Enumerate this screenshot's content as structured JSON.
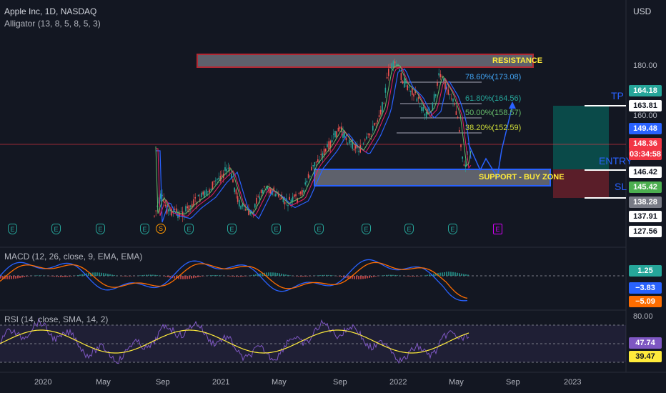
{
  "header": {
    "symbol_line": "Apple Inc, 1D, NASDAQ",
    "indicator": "Alligator (13, 8, 5, 8, 5, 3)",
    "currency": "USD"
  },
  "zones": {
    "resistance": "RESISTANCE",
    "support": "SUPPORT - BUY ZONE"
  },
  "fib": {
    "f786": "78.60%(173.08)",
    "f618": "61.80%(164.56)",
    "f500": "50.00%(158.57)",
    "f382": "38.20%(152.59)"
  },
  "position": {
    "tp": "TP",
    "entry": "ENTRY",
    "sl": "SL"
  },
  "price_axis": {
    "p180": "180.00",
    "p160": "160.00",
    "tags": [
      {
        "value": "164.18",
        "bg": "#26a69a",
        "fg": "#ffffff"
      },
      {
        "value": "163.81",
        "bg": "#ffffff",
        "fg": "#131722"
      },
      {
        "value": "149.48",
        "bg": "#2962ff",
        "fg": "#ffffff"
      },
      {
        "value": "148.36",
        "bg": "#f23645",
        "fg": "#ffffff"
      },
      {
        "value": "03:34:58",
        "bg": "#f23645",
        "fg": "#ffffff"
      },
      {
        "value": "146.42",
        "bg": "#ffffff",
        "fg": "#131722"
      },
      {
        "value": "145.42",
        "bg": "#4caf50",
        "fg": "#ffffff"
      },
      {
        "value": "138.28",
        "bg": "#787b86",
        "fg": "#ffffff"
      },
      {
        "value": "137.91",
        "bg": "#ffffff",
        "fg": "#131722"
      },
      {
        "value": "127.56",
        "bg": "#ffffff",
        "fg": "#131722"
      }
    ]
  },
  "macd": {
    "title": "MACD (12, 26, close, 9, EMA, EMA)",
    "tags": [
      {
        "value": "1.25",
        "bg": "#26a69a",
        "fg": "#ffffff"
      },
      {
        "value": "−3.83",
        "bg": "#2962ff",
        "fg": "#ffffff"
      },
      {
        "value": "−5.09",
        "bg": "#ff6d00",
        "fg": "#ffffff"
      }
    ]
  },
  "rsi": {
    "title": "RSI (14, close, SMA, 14, 2)",
    "level": "80.00",
    "tags": [
      {
        "value": "47.74",
        "bg": "#7e57c2",
        "fg": "#ffffff"
      },
      {
        "value": "39.47",
        "bg": "#ffeb3b",
        "fg": "#131722"
      }
    ]
  },
  "earnings_icon_letter": "E",
  "split_icon_letter": "S",
  "x_axis": [
    "2020",
    "May",
    "Sep",
    "2021",
    "May",
    "Sep",
    "2022",
    "May",
    "Sep",
    "2023"
  ]
}
